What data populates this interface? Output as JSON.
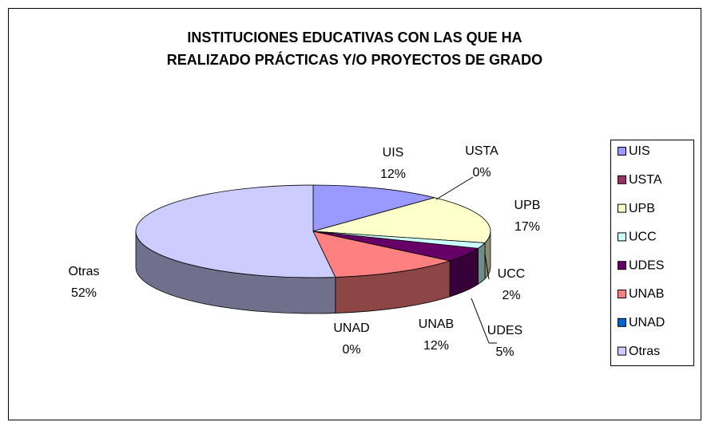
{
  "chart_data": {
    "type": "pie",
    "title": [
      "INSTITUCIONES EDUCATIVAS CON LAS QUE HA",
      "REALIZADO PRÁCTICAS Y/O PROYECTOS DE GRADO"
    ],
    "categories": [
      "UIS",
      "USTA",
      "UPB",
      "UCC",
      "UDES",
      "UNAB",
      "UNAD",
      "Otras"
    ],
    "values": [
      12,
      0,
      17,
      2,
      5,
      12,
      0,
      52
    ],
    "value_labels": [
      "12%",
      "0%",
      "17%",
      "2%",
      "5%",
      "12%",
      "0%",
      "52%"
    ],
    "colors": [
      "#9999ff",
      "#993366",
      "#ffffcc",
      "#ccffff",
      "#660066",
      "#ff8080",
      "#0066cc",
      "#ccccff"
    ],
    "legend": "right"
  }
}
